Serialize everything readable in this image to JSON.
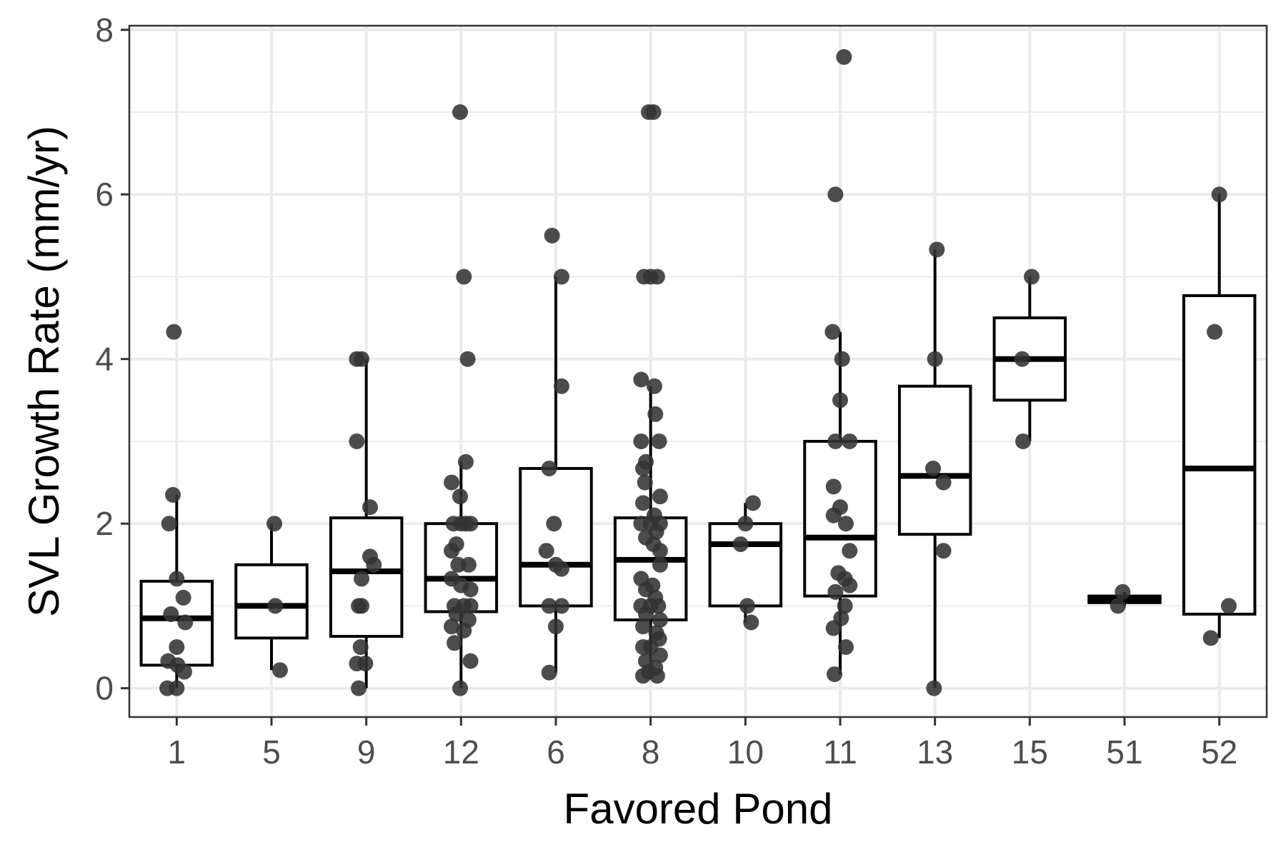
{
  "chart_data": {
    "type": "boxplot",
    "xlabel": "Favored Pond",
    "ylabel": "SVL Growth Rate (mm/yr)",
    "ylim": [
      -0.35,
      8.05
    ],
    "y_ticks": [
      0,
      2,
      4,
      6,
      8
    ],
    "grid": true,
    "colors": {
      "point": "#333333",
      "box": "#000000",
      "grid": "#ebebeb",
      "panel_border": "#333333"
    },
    "categories": [
      "1",
      "5",
      "9",
      "12",
      "6",
      "8",
      "10",
      "11",
      "13",
      "15",
      "51",
      "52"
    ],
    "boxes": [
      {
        "category": "1",
        "q1": 0.28,
        "median": 0.85,
        "q3": 1.3,
        "whisker_low": 0.0,
        "whisker_high": 2.35
      },
      {
        "category": "5",
        "q1": 0.61,
        "median": 1.0,
        "q3": 1.5,
        "whisker_low": 0.22,
        "whisker_high": 2.0
      },
      {
        "category": "9",
        "q1": 0.63,
        "median": 1.42,
        "q3": 2.07,
        "whisker_low": 0.0,
        "whisker_high": 4.0
      },
      {
        "category": "12",
        "q1": 0.93,
        "median": 1.33,
        "q3": 2.0,
        "whisker_low": 0.0,
        "whisker_high": 2.75
      },
      {
        "category": "6",
        "q1": 1.0,
        "median": 1.5,
        "q3": 2.67,
        "whisker_low": 0.19,
        "whisker_high": 5.0
      },
      {
        "category": "8",
        "q1": 0.83,
        "median": 1.56,
        "q3": 2.07,
        "whisker_low": 0.15,
        "whisker_high": 3.67
      },
      {
        "category": "10",
        "q1": 1.0,
        "median": 1.75,
        "q3": 2.0,
        "whisker_low": 0.8,
        "whisker_high": 2.25
      },
      {
        "category": "11",
        "q1": 1.12,
        "median": 1.83,
        "q3": 3.0,
        "whisker_low": 0.17,
        "whisker_high": 4.33
      },
      {
        "category": "13",
        "q1": 1.87,
        "median": 2.58,
        "q3": 3.67,
        "whisker_low": 0.0,
        "whisker_high": 5.33
      },
      {
        "category": "15",
        "q1": 3.5,
        "median": 4.0,
        "q3": 4.5,
        "whisker_low": 3.0,
        "whisker_high": 5.0
      },
      {
        "category": "51",
        "q1": 1.04,
        "median": 1.08,
        "q3": 1.12,
        "whisker_low": 1.0,
        "whisker_high": 1.17
      },
      {
        "category": "52",
        "q1": 0.9,
        "median": 2.67,
        "q3": 4.77,
        "whisker_low": 0.61,
        "whisker_high": 6.0
      }
    ],
    "points": [
      {
        "category": "1",
        "values": [
          4.33,
          2.35,
          2.0,
          1.33,
          1.1,
          0.9,
          0.8,
          0.5,
          0.33,
          0.28,
          0.2,
          0.0,
          0.0
        ],
        "jitter": [
          -0.03,
          -0.04,
          -0.08,
          0.0,
          0.07,
          -0.06,
          0.09,
          0.0,
          -0.09,
          0.01,
          0.08,
          -0.1,
          0.0
        ]
      },
      {
        "category": "5",
        "values": [
          2.0,
          1.0,
          0.22
        ],
        "jitter": [
          0.03,
          0.04,
          0.09
        ]
      },
      {
        "category": "9",
        "values": [
          4.0,
          4.0,
          3.0,
          2.2,
          1.6,
          1.5,
          1.33,
          1.0,
          1.0,
          0.5,
          0.3,
          0.3,
          0.0
        ],
        "jitter": [
          -0.1,
          -0.05,
          -0.1,
          0.04,
          0.04,
          0.08,
          -0.05,
          -0.05,
          -0.08,
          -0.06,
          -0.1,
          -0.01,
          -0.08
        ]
      },
      {
        "category": "12",
        "values": [
          7.0,
          5.0,
          4.0,
          2.75,
          2.5,
          2.33,
          2.0,
          2.0,
          2.0,
          2.0,
          1.75,
          1.67,
          1.5,
          1.5,
          1.33,
          1.25,
          1.2,
          1.0,
          1.0,
          1.0,
          0.9,
          0.83,
          0.75,
          0.7,
          0.55,
          0.33,
          0.0
        ],
        "jitter": [
          -0.01,
          0.03,
          0.07,
          0.05,
          -0.1,
          -0.01,
          -0.08,
          0.0,
          0.05,
          0.1,
          -0.05,
          -0.1,
          -0.03,
          0.08,
          -0.1,
          0.0,
          0.1,
          -0.07,
          0.03,
          0.1,
          -0.05,
          0.08,
          -0.1,
          0.03,
          -0.07,
          0.1,
          -0.01
        ]
      },
      {
        "category": "6",
        "values": [
          5.5,
          5.0,
          3.67,
          2.67,
          2.0,
          1.67,
          1.5,
          1.45,
          1.0,
          1.0,
          0.75,
          0.19
        ],
        "jitter": [
          -0.04,
          0.06,
          0.06,
          -0.07,
          -0.02,
          -0.1,
          0.0,
          0.06,
          -0.07,
          0.06,
          0.0,
          -0.07
        ]
      },
      {
        "category": "8",
        "values": [
          7.0,
          7.0,
          5.0,
          5.0,
          5.0,
          3.75,
          3.67,
          3.33,
          3.0,
          3.0,
          2.75,
          2.67,
          2.5,
          2.33,
          2.25,
          2.1,
          2.0,
          2.0,
          2.0,
          1.9,
          1.83,
          1.75,
          1.67,
          1.5,
          1.33,
          1.25,
          1.2,
          1.1,
          1.0,
          1.0,
          1.0,
          0.9,
          0.83,
          0.75,
          0.67,
          0.6,
          0.5,
          0.5,
          0.4,
          0.33,
          0.25,
          0.2,
          0.15,
          0.15
        ],
        "jitter": [
          -0.02,
          0.03,
          -0.07,
          0.0,
          0.07,
          -0.1,
          0.04,
          0.05,
          -0.1,
          0.09,
          -0.05,
          -0.08,
          -0.06,
          0.1,
          -0.08,
          0.04,
          -0.1,
          0.0,
          0.1,
          0.06,
          -0.05,
          0.03,
          0.1,
          0.1,
          -0.1,
          0.02,
          -0.05,
          0.05,
          -0.1,
          0.0,
          0.08,
          -0.05,
          0.1,
          -0.08,
          0.06,
          0.09,
          -0.08,
          0.0,
          0.1,
          -0.05,
          0.05,
          -0.02,
          -0.08,
          0.07
        ]
      },
      {
        "category": "10",
        "values": [
          2.25,
          2.0,
          1.75,
          1.0,
          0.8
        ],
        "jitter": [
          0.08,
          0.0,
          -0.05,
          0.02,
          0.06
        ]
      },
      {
        "category": "11",
        "values": [
          7.67,
          6.0,
          4.33,
          4.0,
          3.5,
          3.0,
          3.0,
          2.45,
          2.2,
          2.1,
          2.0,
          1.67,
          1.4,
          1.33,
          1.25,
          1.17,
          1.0,
          0.85,
          0.73,
          0.5,
          0.17
        ],
        "jitter": [
          0.04,
          -0.05,
          -0.08,
          0.02,
          0.0,
          -0.05,
          0.1,
          -0.07,
          0.0,
          -0.07,
          0.06,
          0.1,
          -0.02,
          0.05,
          0.1,
          -0.05,
          0.05,
          0.01,
          -0.07,
          0.06,
          -0.06
        ]
      },
      {
        "category": "13",
        "values": [
          5.33,
          4.0,
          2.67,
          2.5,
          1.67,
          0.0
        ],
        "jitter": [
          0.02,
          0.0,
          -0.02,
          0.09,
          0.09,
          -0.01
        ]
      },
      {
        "category": "15",
        "values": [
          5.0,
          4.0,
          3.0
        ],
        "jitter": [
          0.02,
          -0.08,
          -0.07
        ]
      },
      {
        "category": "51",
        "values": [
          1.17,
          1.0
        ],
        "jitter": [
          -0.02,
          -0.07
        ]
      },
      {
        "category": "52",
        "values": [
          6.0,
          4.33,
          1.0,
          0.61
        ],
        "jitter": [
          0.0,
          -0.05,
          0.1,
          -0.09
        ]
      }
    ]
  }
}
